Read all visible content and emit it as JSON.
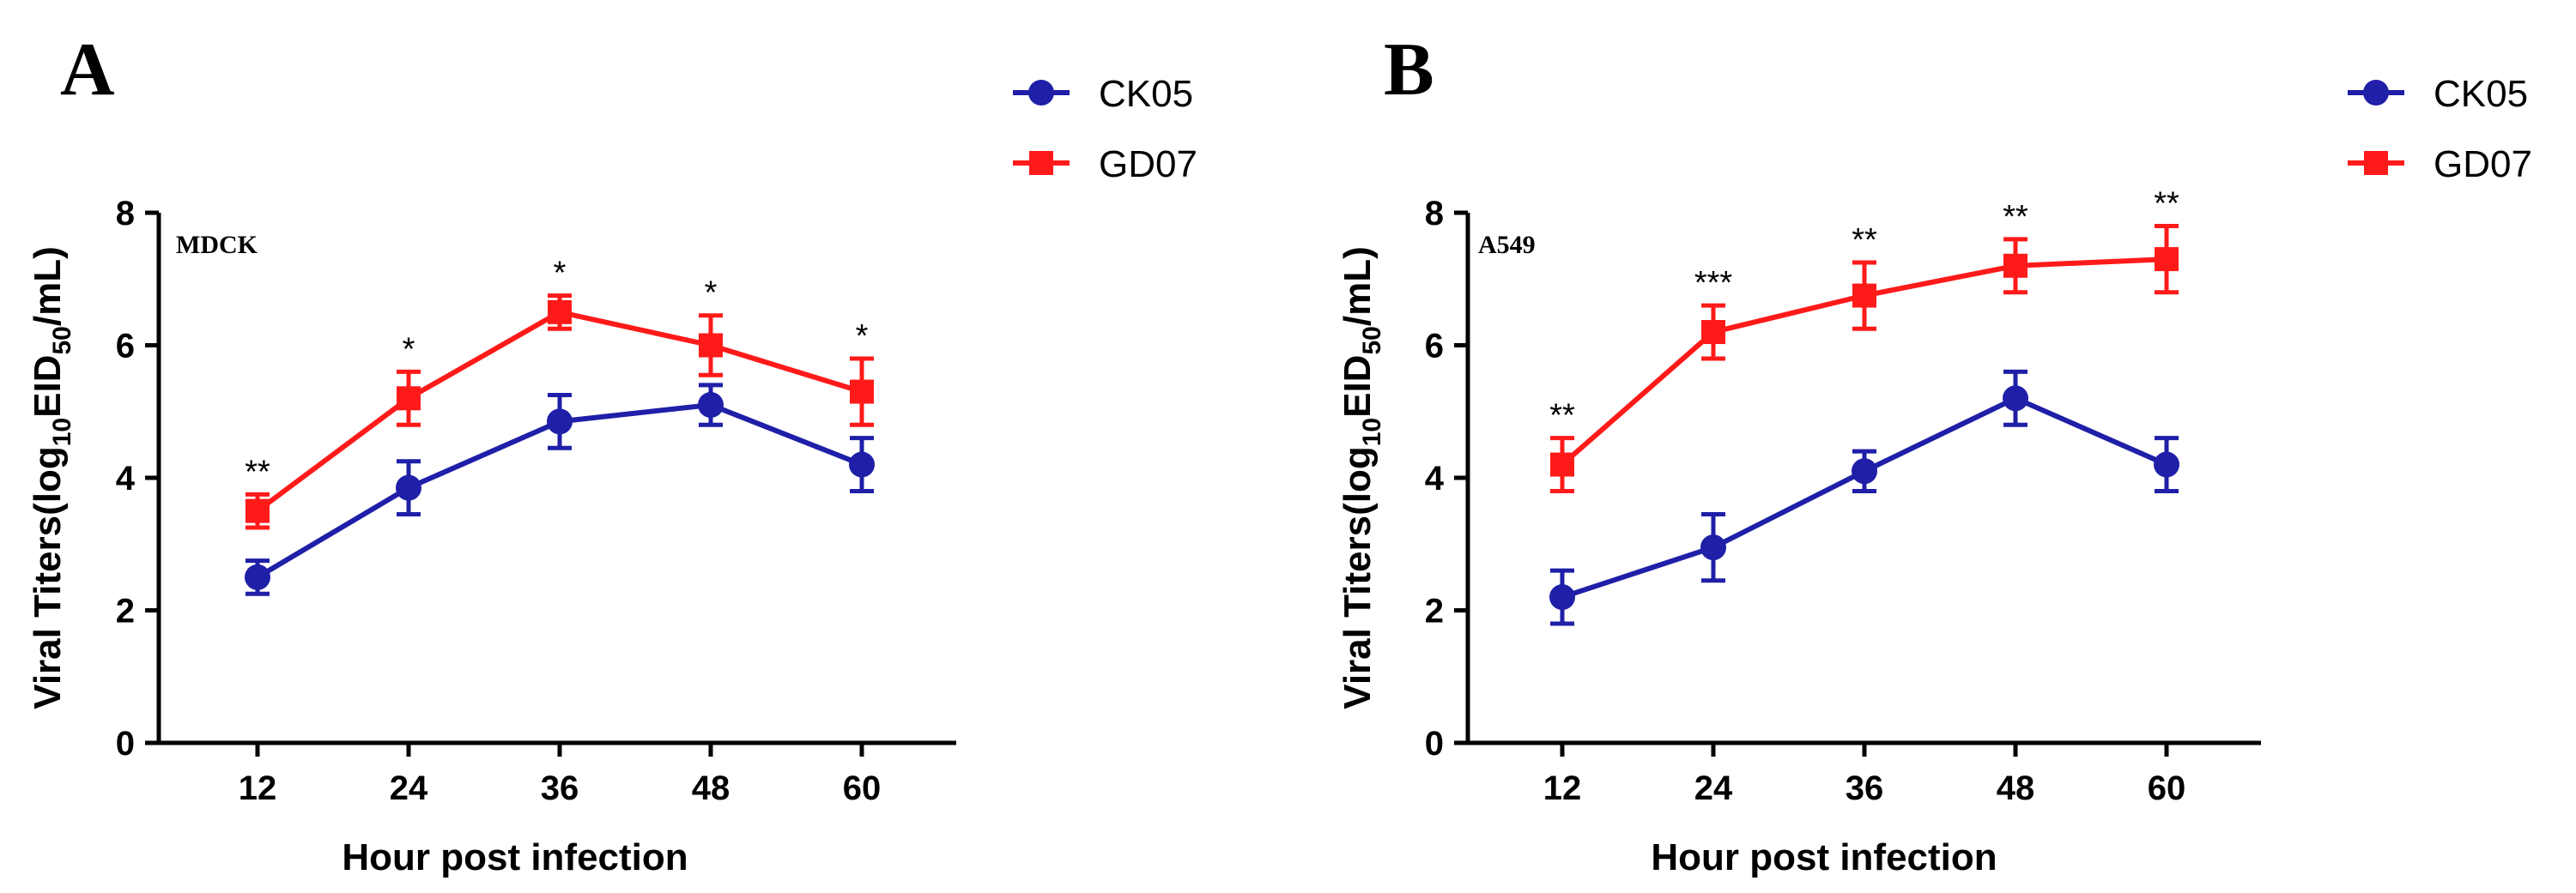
{
  "chart_data": [
    {
      "type": "line",
      "panel_label": "A",
      "cell_line": "MDCK",
      "title": "",
      "xlabel": "Hour post infection",
      "ylabel_prefix": "Viral Titers(log",
      "ylabel_sub1": "10",
      "ylabel_mid": "EID",
      "ylabel_sub2": "50",
      "ylabel_suffix": "/mL)",
      "categories": [
        "12",
        "24",
        "36",
        "48",
        "60"
      ],
      "ylim": [
        0,
        8
      ],
      "yticks": [
        "0",
        "2",
        "4",
        "6",
        "8"
      ],
      "legend_position": "top-right",
      "series": [
        {
          "name": "CK05",
          "color": "#1f1fa8",
          "marker": "circle",
          "values": [
            2.5,
            3.85,
            4.85,
            5.1,
            4.2
          ],
          "errors": [
            0.25,
            0.4,
            0.4,
            0.3,
            0.4
          ]
        },
        {
          "name": "GD07",
          "color": "#ff1a1a",
          "marker": "square",
          "values": [
            3.5,
            5.2,
            6.5,
            6.0,
            5.3
          ],
          "errors": [
            0.25,
            0.4,
            0.25,
            0.45,
            0.5
          ]
        }
      ],
      "significance": [
        "**",
        "*",
        "*",
        "*",
        "*"
      ]
    },
    {
      "type": "line",
      "panel_label": "B",
      "cell_line": "A549",
      "title": "",
      "xlabel": "Hour post infection",
      "ylabel_prefix": "Viral Titers(log",
      "ylabel_sub1": "10",
      "ylabel_mid": "EID",
      "ylabel_sub2": "50",
      "ylabel_suffix": "/mL)",
      "categories": [
        "12",
        "24",
        "36",
        "48",
        "60"
      ],
      "ylim": [
        0,
        8
      ],
      "yticks": [
        "0",
        "2",
        "4",
        "6",
        "8"
      ],
      "legend_position": "top-right",
      "series": [
        {
          "name": "CK05",
          "color": "#1f1fa8",
          "marker": "circle",
          "values": [
            2.2,
            2.95,
            4.1,
            5.2,
            4.2
          ],
          "errors": [
            0.4,
            0.5,
            0.3,
            0.4,
            0.4
          ]
        },
        {
          "name": "GD07",
          "color": "#ff1a1a",
          "marker": "square",
          "values": [
            4.2,
            6.2,
            6.75,
            7.2,
            7.3
          ],
          "errors": [
            0.4,
            0.4,
            0.5,
            0.4,
            0.5
          ]
        }
      ],
      "significance": [
        "**",
        "***",
        "**",
        "**",
        "**"
      ]
    }
  ]
}
